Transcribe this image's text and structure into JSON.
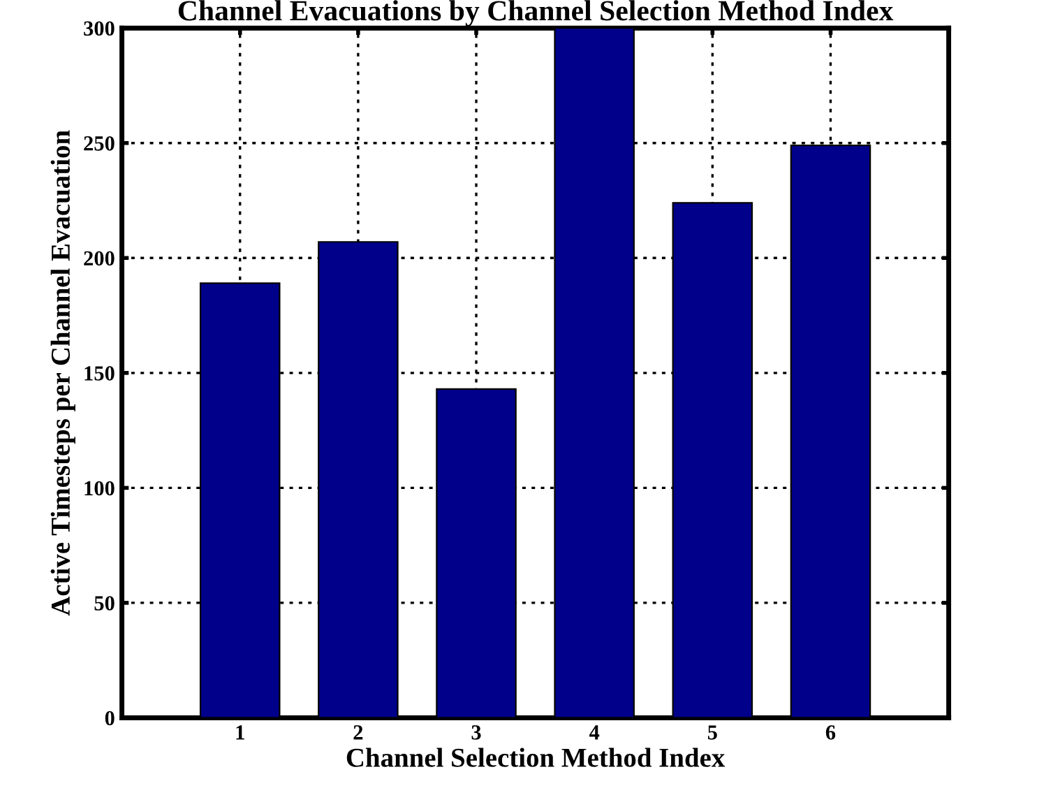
{
  "chart_data": {
    "type": "bar",
    "title": "Channel Evacuations by Channel Selection Method Index",
    "xlabel": "Channel Selection Method Index",
    "ylabel": "Active Timesteps per Channel Evacuation",
    "categories": [
      "1",
      "2",
      "3",
      "4",
      "5",
      "6"
    ],
    "values": [
      189,
      207,
      143,
      300,
      224,
      249
    ],
    "color": "#00008b",
    "ylim": [
      0,
      300
    ],
    "yticks": [
      0,
      50,
      100,
      150,
      200,
      250,
      300
    ],
    "grid": true
  }
}
